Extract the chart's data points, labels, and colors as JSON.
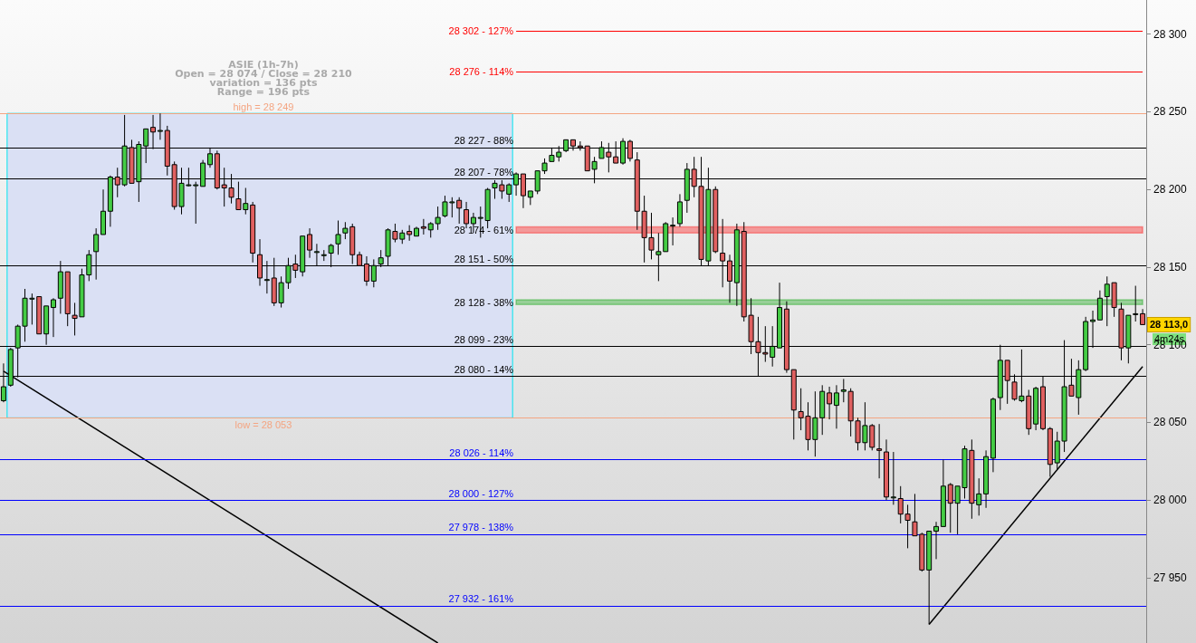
{
  "chart_data": {
    "type": "candlestick",
    "title": "ASIE (1h-7h)",
    "annotations": [
      "Open = 28 074 / Close = 28 210",
      "variation = 136 pts",
      "Range = 196 pts",
      "28 113,0",
      "4m24s"
    ],
    "categories": [
      null,
      null,
      null,
      null,
      null,
      null,
      null,
      null,
      null,
      null,
      null,
      null,
      null,
      null,
      null,
      null,
      null,
      null,
      null,
      null,
      null,
      null,
      null,
      null,
      null,
      null,
      null,
      null,
      null,
      null,
      null,
      null,
      null,
      null,
      null,
      null,
      null,
      null,
      null,
      null,
      null,
      null,
      null,
      null,
      null,
      null,
      null,
      null,
      null,
      null,
      null,
      null,
      null,
      null,
      null,
      null,
      null,
      null,
      null,
      null,
      null,
      null,
      null,
      null,
      null,
      null,
      null,
      null,
      null,
      null,
      null,
      null,
      null,
      null,
      null,
      null,
      null,
      null,
      null,
      null,
      null,
      null,
      null,
      null,
      null,
      null,
      null,
      null,
      null,
      null,
      null,
      null,
      null,
      null,
      null,
      null,
      null,
      null,
      null,
      null,
      null,
      null,
      null,
      null,
      null,
      null,
      null,
      null,
      null,
      null,
      null,
      null,
      null,
      null,
      null,
      null,
      null,
      null,
      null,
      null,
      null,
      null,
      null,
      null,
      null,
      null,
      null,
      null,
      null,
      null,
      null,
      null,
      null,
      null,
      null,
      null,
      null,
      null,
      null,
      null,
      null,
      null,
      null,
      null,
      null,
      null,
      null,
      null,
      null,
      null,
      null,
      null,
      null,
      null,
      null,
      null,
      null,
      null,
      null,
      null,
      null
    ],
    "ohlc": [
      [
        28064,
        28088,
        28063,
        28073
      ],
      [
        28074,
        28098,
        28073,
        28097
      ],
      [
        28098,
        28113,
        28079,
        28112
      ],
      [
        28112,
        28136,
        28102,
        28130
      ],
      [
        28130,
        28133,
        28113,
        28130
      ],
      [
        28131,
        28131,
        28107,
        28107
      ],
      [
        28107,
        28125,
        28100,
        28125
      ],
      [
        28124,
        28130,
        28105,
        28129
      ],
      [
        28130,
        28154,
        28120,
        28147
      ],
      [
        28147,
        28147,
        28112,
        28120
      ],
      [
        28119,
        28127,
        28106,
        28117
      ],
      [
        28118,
        28149,
        28118,
        28145
      ],
      [
        28145,
        28161,
        28141,
        28158
      ],
      [
        28160,
        28175,
        28142,
        28171
      ],
      [
        28171,
        28200,
        28171,
        28186
      ],
      [
        28186,
        28209,
        28176,
        28208
      ],
      [
        28208,
        28214,
        28195,
        28203
      ],
      [
        28203,
        28248,
        28202,
        28228
      ],
      [
        28227,
        28232,
        28204,
        28204
      ],
      [
        28205,
        28231,
        28192,
        28229
      ],
      [
        28228,
        28239,
        28217,
        28239
      ],
      [
        28240,
        28248,
        28226,
        28237
      ],
      [
        28238,
        28249,
        28232,
        28238
      ],
      [
        28238,
        28241,
        28209,
        28215
      ],
      [
        28216,
        28218,
        28187,
        28189
      ],
      [
        28189,
        28214,
        28184,
        28204
      ],
      [
        28203,
        28214,
        28202,
        28203
      ],
      [
        28203,
        28205,
        28178,
        28203
      ],
      [
        28202,
        28219,
        28202,
        28217
      ],
      [
        28216,
        28227,
        28214,
        28223
      ],
      [
        28223,
        28225,
        28200,
        28201
      ],
      [
        28203,
        28214,
        28189,
        28201
      ],
      [
        28201,
        28210,
        28191,
        28195
      ],
      [
        28194,
        28205,
        28187,
        28187
      ],
      [
        28187,
        28201,
        28184,
        28191
      ],
      [
        28190,
        28192,
        28153,
        28159
      ],
      [
        28158,
        28168,
        28138,
        28143
      ],
      [
        28142,
        28154,
        28133,
        28142
      ],
      [
        28143,
        28156,
        28125,
        28127
      ],
      [
        28127,
        28144,
        28124,
        28140
      ],
      [
        28140,
        28156,
        28136,
        28151
      ],
      [
        28152,
        28158,
        28143,
        28148
      ],
      [
        28147,
        28170,
        28144,
        28170
      ],
      [
        28171,
        28175,
        28156,
        28161
      ],
      [
        28160,
        28165,
        28151,
        28160
      ],
      [
        28158,
        28161,
        28154,
        28158
      ],
      [
        28159,
        28165,
        28150,
        28164
      ],
      [
        28165,
        28180,
        28158,
        28171
      ],
      [
        28172,
        28179,
        28168,
        28175
      ],
      [
        28176,
        28178,
        28152,
        28158
      ],
      [
        28158,
        28160,
        28151,
        28151
      ],
      [
        28152,
        28157,
        28138,
        28141
      ],
      [
        28141,
        28155,
        28137,
        28151
      ],
      [
        28152,
        28161,
        28150,
        28156
      ],
      [
        28157,
        28175,
        28151,
        28174
      ],
      [
        28173,
        28178,
        28166,
        28168
      ],
      [
        28168,
        28174,
        28165,
        28172
      ],
      [
        28173,
        28177,
        28167,
        28171
      ],
      [
        28170,
        28176,
        28170,
        28175
      ],
      [
        28176,
        28181,
        28171,
        28175
      ],
      [
        28174,
        28179,
        28169,
        28178
      ],
      [
        28178,
        28189,
        28174,
        28182
      ],
      [
        28183,
        28196,
        28182,
        28192
      ],
      [
        28192,
        28195,
        28182,
        28192
      ],
      [
        28193,
        28195,
        28178,
        28188
      ],
      [
        28187,
        28192,
        28175,
        28178
      ],
      [
        28178,
        28185,
        28172,
        28182
      ],
      [
        28182,
        28189,
        28169,
        28182
      ],
      [
        28180,
        28201,
        28175,
        28200
      ],
      [
        28201,
        28206,
        28194,
        28204
      ],
      [
        28203,
        28206,
        28194,
        28199
      ],
      [
        28197,
        28204,
        28192,
        28203
      ],
      [
        28203,
        28211,
        28196,
        28210
      ],
      [
        28210,
        28210,
        28188,
        28196
      ],
      [
        28195,
        28199,
        28190,
        28199
      ],
      [
        28199,
        28212,
        28197,
        28212
      ],
      [
        28212,
        28220,
        28210,
        28217
      ],
      [
        28218,
        28227,
        28218,
        28222
      ],
      [
        28221,
        28228,
        28218,
        28224
      ],
      [
        28225,
        28232,
        28224,
        28232
      ],
      [
        28232,
        28232,
        28225,
        28228
      ],
      [
        28228,
        28231,
        28225,
        28227
      ],
      [
        28228,
        28228,
        28212,
        28212
      ],
      [
        28213,
        28221,
        28204,
        28218
      ],
      [
        28220,
        28231,
        28220,
        28227
      ],
      [
        28224,
        28230,
        28211,
        28221
      ],
      [
        28221,
        28231,
        28217,
        28217
      ],
      [
        28217,
        28233,
        28216,
        28231
      ],
      [
        28231,
        28232,
        28218,
        28220
      ],
      [
        28219,
        28224,
        28174,
        28186
      ],
      [
        28186,
        28196,
        28153,
        28169
      ],
      [
        28169,
        28185,
        28155,
        28161
      ],
      [
        28158,
        28172,
        28141,
        28160
      ],
      [
        28160,
        28179,
        28160,
        28178
      ],
      [
        28177,
        28182,
        28164,
        28177
      ],
      [
        28178,
        28197,
        28176,
        28192
      ],
      [
        28193,
        28217,
        28185,
        28213
      ],
      [
        28213,
        28221,
        28195,
        28202
      ],
      [
        28202,
        28221,
        28151,
        28155
      ],
      [
        28154,
        28214,
        28151,
        28200
      ],
      [
        28200,
        28202,
        28159,
        28160
      ],
      [
        28159,
        28181,
        28137,
        28154
      ],
      [
        28154,
        28158,
        28127,
        28141
      ],
      [
        28140,
        28178,
        28125,
        28174
      ],
      [
        28173,
        28179,
        28115,
        28118
      ],
      [
        28119,
        28130,
        28094,
        28102
      ],
      [
        28102,
        28118,
        28080,
        28095
      ],
      [
        28095,
        28112,
        28089,
        28094
      ],
      [
        28092,
        28112,
        28086,
        28099
      ],
      [
        28098,
        28140,
        28098,
        28124
      ],
      [
        28123,
        28128,
        28082,
        28084
      ],
      [
        28084,
        28084,
        28039,
        28058
      ],
      [
        28057,
        28072,
        28045,
        28053
      ],
      [
        28054,
        28063,
        28032,
        28039
      ],
      [
        28039,
        28070,
        28028,
        28053
      ],
      [
        28053,
        28074,
        28042,
        28070
      ],
      [
        28069,
        28073,
        28052,
        28062
      ],
      [
        28061,
        28074,
        28046,
        28069
      ],
      [
        28070,
        28078,
        28063,
        28071
      ],
      [
        28070,
        28072,
        28041,
        28051
      ],
      [
        28051,
        28053,
        28032,
        28037
      ],
      [
        28037,
        28063,
        28032,
        28048
      ],
      [
        28048,
        28049,
        28032,
        28034
      ],
      [
        28033,
        28049,
        28014,
        28032
      ],
      [
        28031,
        28039,
        28000,
        28002
      ],
      [
        28002,
        28031,
        27997,
        28002
      ],
      [
        28001,
        28009,
        27985,
        27991
      ],
      [
        27991,
        27997,
        27969,
        27987
      ],
      [
        27986,
        28004,
        27977,
        27977
      ],
      [
        27978,
        27979,
        27954,
        27955
      ],
      [
        27955,
        27980,
        27920,
        27980
      ],
      [
        27980,
        27986,
        27962,
        27983
      ],
      [
        27983,
        28026,
        27983,
        28009
      ],
      [
        28010,
        28011,
        27979,
        27998
      ],
      [
        27998,
        28009,
        27978,
        28009
      ],
      [
        28008,
        28035,
        28001,
        28033
      ],
      [
        28032,
        28039,
        27988,
        27998
      ],
      [
        27997,
        28014,
        27990,
        28004
      ],
      [
        28004,
        28032,
        27995,
        28028
      ],
      [
        28027,
        28066,
        28018,
        28065
      ],
      [
        28066,
        28100,
        28058,
        28090
      ],
      [
        28090,
        28090,
        28062,
        28077
      ],
      [
        28076,
        28081,
        28064,
        28065
      ],
      [
        28064,
        28097,
        28063,
        28067
      ],
      [
        28067,
        28071,
        28042,
        28046
      ],
      [
        28049,
        28073,
        28045,
        28072
      ],
      [
        28073,
        28080,
        28045,
        28046
      ],
      [
        28046,
        28047,
        28015,
        28023
      ],
      [
        28024,
        28044,
        28020,
        28038
      ],
      [
        28038,
        28103,
        28031,
        28073
      ],
      [
        28074,
        28091,
        28067,
        28067
      ],
      [
        28066,
        28090,
        28055,
        28084
      ],
      [
        28084,
        28118,
        28083,
        28115
      ],
      [
        28115,
        28122,
        28098,
        28116
      ],
      [
        28116,
        28135,
        28116,
        28130
      ],
      [
        28131,
        28144,
        28112,
        28139
      ],
      [
        28140,
        28140,
        28118,
        28124
      ],
      [
        28123,
        28127,
        28090,
        28098
      ],
      [
        28098,
        28119,
        28088,
        28119
      ],
      [
        28120,
        28138,
        28115,
        28120
      ],
      [
        28120,
        28123,
        28113,
        28113
      ]
    ],
    "series": [
      {
        "type": "line",
        "color": "#000000",
        "values": [
          28083,
          null,
          null,
          null,
          null,
          null,
          null,
          null,
          null,
          null,
          null,
          null,
          null,
          null,
          null,
          null,
          null,
          null,
          null,
          null,
          null,
          null,
          null,
          null,
          null,
          null,
          null,
          null,
          null,
          null,
          null,
          null,
          null,
          null,
          null,
          null,
          null,
          null,
          null,
          null,
          null,
          null,
          null,
          null,
          null,
          null,
          null,
          null,
          null,
          null,
          null,
          null,
          null,
          null,
          null,
          null,
          null,
          null,
          null,
          null,
          null,
          27908,
          null,
          null,
          null,
          null,
          null,
          null,
          null,
          null,
          null,
          null,
          null,
          null,
          null,
          null,
          null,
          null,
          null,
          null,
          null,
          null,
          null,
          null,
          null,
          null,
          null,
          null,
          null,
          null,
          null,
          null,
          null,
          null,
          null,
          null,
          null,
          null,
          null,
          null,
          null,
          null,
          null,
          null,
          null,
          null,
          null,
          null,
          null,
          null,
          null,
          null,
          null,
          null,
          null,
          null,
          null,
          null,
          null,
          null,
          null,
          null,
          null,
          null,
          null,
          null,
          null,
          null,
          null,
          null,
          null,
          null,
          null,
          null,
          null,
          null,
          null,
          null,
          null,
          null,
          null,
          null,
          null,
          null,
          null,
          null,
          null,
          null,
          null,
          null,
          null,
          null,
          null,
          null,
          null,
          null,
          null,
          null,
          null,
          null,
          null
        ]
      },
      {
        "type": "line",
        "color": "#000000",
        "values": [
          null,
          null,
          null,
          null,
          null,
          null,
          null,
          null,
          null,
          null,
          null,
          null,
          null,
          null,
          null,
          null,
          null,
          null,
          null,
          null,
          null,
          null,
          null,
          null,
          null,
          null,
          null,
          null,
          null,
          null,
          null,
          null,
          null,
          null,
          null,
          null,
          null,
          null,
          null,
          null,
          null,
          null,
          null,
          null,
          null,
          null,
          null,
          null,
          null,
          null,
          null,
          null,
          null,
          null,
          null,
          null,
          null,
          null,
          null,
          null,
          null,
          null,
          null,
          null,
          null,
          null,
          null,
          null,
          null,
          null,
          null,
          null,
          null,
          null,
          null,
          null,
          null,
          null,
          null,
          null,
          null,
          null,
          null,
          null,
          null,
          null,
          null,
          null,
          null,
          null,
          null,
          null,
          null,
          null,
          null,
          null,
          null,
          null,
          null,
          null,
          null,
          null,
          null,
          null,
          null,
          null,
          null,
          null,
          null,
          null,
          null,
          null,
          null,
          null,
          null,
          null,
          null,
          null,
          null,
          null,
          null,
          null,
          null,
          null,
          null,
          null,
          null,
          null,
          null,
          null,
          27920,
          null,
          null,
          null,
          null,
          null,
          null,
          null,
          null,
          null,
          null,
          null,
          null,
          null,
          null,
          null,
          null,
          null,
          null,
          null,
          null,
          null,
          null,
          null,
          null,
          null,
          null,
          null,
          null,
          null,
          28086
        ]
      }
    ],
    "ref_lines": [
      {
        "axis": "y",
        "value": 28249,
        "label": "high = 28 249",
        "color": "#f4a582"
      },
      {
        "axis": "y",
        "value": 28053,
        "label": "low = 28 053",
        "color": "#f4a582"
      },
      {
        "axis": "y",
        "value": 28302,
        "label": "28 302 - 127%",
        "color": "#ff0000"
      },
      {
        "axis": "y",
        "value": 28276,
        "label": "28 276 - 114%",
        "color": "#ff0000"
      },
      {
        "axis": "y",
        "value": 28227,
        "label": "28 227 - 88%",
        "color": "#000000"
      },
      {
        "axis": "y",
        "value": 28207,
        "label": "28 207 - 78%",
        "color": "#000000"
      },
      {
        "axis": "y",
        "value": 28151,
        "label": "28 151 - 50%",
        "color": "#000000"
      },
      {
        "axis": "y",
        "value": 28099,
        "label": "28 099 - 23%",
        "color": "#000000"
      },
      {
        "axis": "y",
        "value": 28080,
        "label": "28 080 - 14%",
        "color": "#000000"
      },
      {
        "axis": "y",
        "value": 28026,
        "label": "28 026 - 114%",
        "color": "#0000ff"
      },
      {
        "axis": "y",
        "value": 28000,
        "label": "28 000 - 127%",
        "color": "#0000ff"
      },
      {
        "axis": "y",
        "value": 27978,
        "label": "27 978 - 138%",
        "color": "#0000ff"
      },
      {
        "axis": "y",
        "value": 27932,
        "label": "27 932 - 161%",
        "color": "#0000ff"
      }
    ],
    "bands": [
      {
        "axis": "y",
        "from": 28053,
        "to": 28249,
        "color": "#dae0f4"
      },
      {
        "axis": "y",
        "from": 28172,
        "to": 28176,
        "label": "28 174 - 61%",
        "color": "#ff0000"
      },
      {
        "axis": "y",
        "from": 28126,
        "to": 28129,
        "label": "28 128 - 38%",
        "color": "#00a000"
      }
    ],
    "ylim": [
      27908,
      28322
    ],
    "yticks": [
      {
        "value": 27950,
        "label": "27 950"
      },
      {
        "value": 28000,
        "label": "28 000"
      },
      {
        "value": 28050,
        "label": "28 050"
      },
      {
        "value": 28100,
        "label": "28 100"
      },
      {
        "value": 28150,
        "label": "28 150"
      },
      {
        "value": 28200,
        "label": "28 200"
      },
      {
        "value": 28250,
        "label": "28 250"
      },
      {
        "value": 28300,
        "label": "28 300"
      }
    ],
    "tick_labels": "y"
  }
}
